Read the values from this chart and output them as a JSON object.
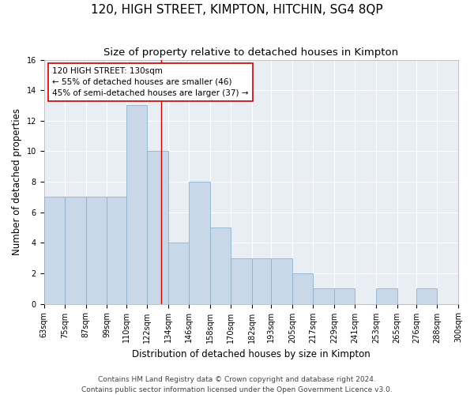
{
  "title": "120, HIGH STREET, KIMPTON, HITCHIN, SG4 8QP",
  "subtitle": "Size of property relative to detached houses in Kimpton",
  "xlabel": "Distribution of detached houses by size in Kimpton",
  "ylabel": "Number of detached properties",
  "bar_left_edges": [
    63,
    75,
    87,
    99,
    110,
    122,
    134,
    146,
    158,
    170,
    182,
    193,
    205,
    217,
    229,
    241,
    253,
    265,
    276,
    288
  ],
  "bar_widths": [
    12,
    12,
    12,
    11,
    12,
    12,
    12,
    12,
    12,
    12,
    11,
    12,
    12,
    12,
    12,
    12,
    12,
    11,
    12,
    12
  ],
  "bar_heights": [
    7,
    7,
    7,
    7,
    13,
    10,
    4,
    8,
    5,
    3,
    3,
    3,
    2,
    1,
    1,
    0,
    1,
    0,
    1,
    0
  ],
  "tick_labels": [
    "63sqm",
    "75sqm",
    "87sqm",
    "99sqm",
    "110sqm",
    "122sqm",
    "134sqm",
    "146sqm",
    "158sqm",
    "170sqm",
    "182sqm",
    "193sqm",
    "205sqm",
    "217sqm",
    "229sqm",
    "241sqm",
    "253sqm",
    "265sqm",
    "276sqm",
    "288sqm",
    "300sqm"
  ],
  "tick_positions": [
    63,
    75,
    87,
    99,
    110,
    122,
    134,
    146,
    158,
    170,
    182,
    193,
    205,
    217,
    229,
    241,
    253,
    265,
    276,
    288,
    300
  ],
  "ylim": [
    0,
    16
  ],
  "xlim": [
    63,
    300
  ],
  "bar_color": "#c8d8e8",
  "bar_edge_color": "#8ab4cc",
  "vline_x": 130,
  "vline_color": "#cc0000",
  "annotation_text": "120 HIGH STREET: 130sqm\n← 55% of detached houses are smaller (46)\n45% of semi-detached houses are larger (37) →",
  "annotation_box_facecolor": "#ffffff",
  "annotation_box_edgecolor": "#cc0000",
  "footer_line1": "Contains HM Land Registry data © Crown copyright and database right 2024.",
  "footer_line2": "Contains public sector information licensed under the Open Government Licence v3.0.",
  "bg_color": "#e8eef4",
  "grid_color": "#ffffff",
  "yticks": [
    0,
    2,
    4,
    6,
    8,
    10,
    12,
    14,
    16
  ],
  "title_fontsize": 11,
  "subtitle_fontsize": 9.5,
  "axis_label_fontsize": 8.5,
  "tick_fontsize": 7,
  "annotation_fontsize": 7.5,
  "footer_fontsize": 6.5
}
